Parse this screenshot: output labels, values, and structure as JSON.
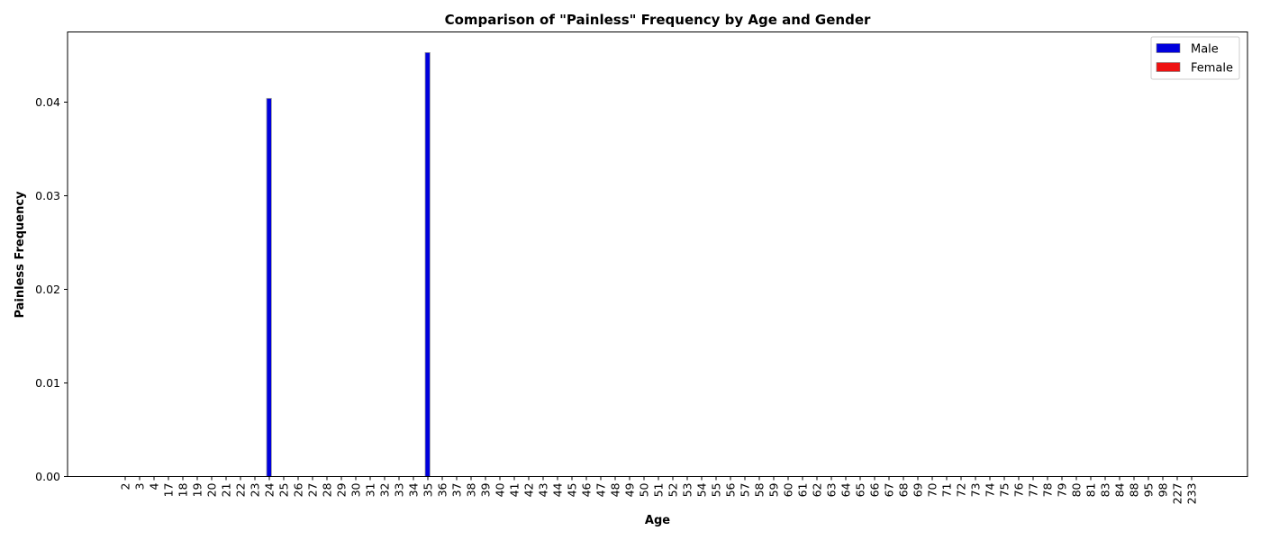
{
  "chart_data": {
    "type": "bar",
    "title": "Comparison of \"Painless\" Frequency by Age and Gender",
    "xlabel": "Age",
    "ylabel": "Painless Frequency",
    "ylim": [
      0,
      0.0475
    ],
    "yticks": [
      0.0,
      0.01,
      0.02,
      0.03,
      0.04
    ],
    "ytick_labels": [
      "0.00",
      "0.01",
      "0.02",
      "0.03",
      "0.04"
    ],
    "categories": [
      "2",
      "3",
      "4",
      "17",
      "18",
      "19",
      "20",
      "21",
      "22",
      "23",
      "24",
      "25",
      "26",
      "27",
      "28",
      "29",
      "30",
      "31",
      "32",
      "33",
      "34",
      "35",
      "36",
      "37",
      "38",
      "39",
      "40",
      "41",
      "42",
      "43",
      "44",
      "45",
      "46",
      "47",
      "48",
      "49",
      "50",
      "51",
      "52",
      "53",
      "54",
      "55",
      "56",
      "57",
      "58",
      "59",
      "60",
      "61",
      "62",
      "63",
      "64",
      "65",
      "66",
      "67",
      "68",
      "69",
      "70",
      "71",
      "72",
      "73",
      "74",
      "75",
      "76",
      "77",
      "78",
      "79",
      "80",
      "81",
      "83",
      "84",
      "88",
      "95",
      "98",
      "227",
      "233"
    ],
    "series": [
      {
        "name": "Male",
        "color": "#0000dd",
        "values": [
          0,
          0,
          0,
          0,
          0,
          0,
          0,
          0,
          0,
          0,
          0.0404,
          0,
          0,
          0,
          0,
          0,
          0,
          0,
          0,
          0,
          0,
          0.0453,
          0,
          0,
          0,
          0,
          0,
          0,
          0,
          0,
          0,
          0,
          0,
          0,
          0,
          0,
          0,
          0,
          0,
          0,
          0,
          0,
          0,
          0,
          0,
          0,
          0,
          0,
          0,
          0,
          0,
          0,
          0,
          0,
          0,
          0,
          0,
          0,
          0,
          0,
          0,
          0,
          0,
          0,
          0,
          0,
          0,
          0,
          0,
          0,
          0,
          0,
          0,
          0,
          0
        ]
      },
      {
        "name": "Female",
        "color": "#ee1111",
        "values": [
          0,
          0,
          0,
          0,
          0,
          0,
          0,
          0,
          0,
          0,
          0,
          0,
          0,
          0,
          0,
          0,
          0,
          0,
          0,
          0,
          0,
          0,
          0,
          0,
          0,
          0,
          0,
          0,
          0,
          0,
          0,
          0,
          0,
          0,
          0,
          0,
          0,
          0,
          0,
          0,
          0,
          0,
          0,
          0,
          0,
          0,
          0,
          0,
          0,
          0,
          0,
          0,
          0,
          0,
          0,
          0,
          0,
          0,
          0,
          0,
          0,
          0,
          0,
          0,
          0,
          0,
          0,
          0,
          0,
          0,
          0,
          0,
          0,
          0,
          0
        ]
      }
    ],
    "legend_position": "top-right",
    "grid": false
  }
}
